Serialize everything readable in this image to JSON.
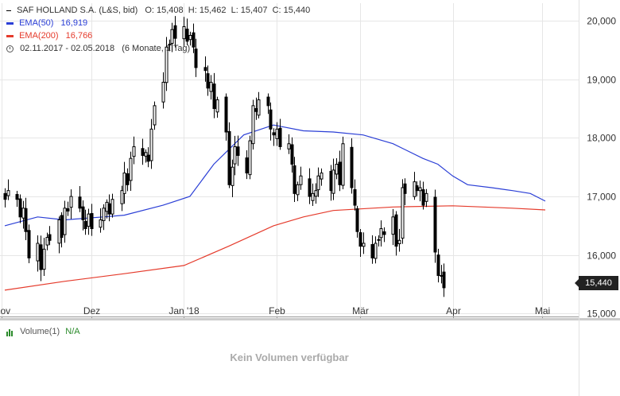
{
  "header": {
    "title": "SAF HOLLAND S.A. (L&S, bid)",
    "ohlc": "O: 15,408  H: 15,462  L: 15,407  C: 15,440",
    "ema50_label": "EMA(50)",
    "ema50_value": "16,919",
    "ema200_label": "EMA(200)",
    "ema200_value": "16,766",
    "period": "02.11.2017 - 02.05.2018",
    "period_detail": "(6 Monate, 1 Tag)"
  },
  "volume": {
    "label": "Volume(1)",
    "value": "N/A",
    "empty_text": "Kein Volumen verfügbar"
  },
  "last_price_label": "15,440",
  "colors": {
    "ema50": "#2b3fd6",
    "ema200": "#e53b2c",
    "candle": "#000000",
    "grid": "#e6e6e6"
  },
  "chart_data": {
    "type": "candlestick",
    "y_ticks": [
      "20,000",
      "19,000",
      "18,000",
      "17,000",
      "16,000",
      "15,000"
    ],
    "y_tick_values": [
      20,
      19,
      18,
      17,
      16,
      15
    ],
    "ylim": [
      14.95,
      20.3
    ],
    "x_ticks": [
      "Nov",
      "Dez",
      "Jan '18",
      "Feb",
      "Mär",
      "Apr",
      "Mai"
    ],
    "x_tick_dates": [
      "2017-11-01",
      "2017-12-01",
      "2018-01-01",
      "2018-02-01",
      "2018-03-01",
      "2018-04-01",
      "2018-05-01"
    ],
    "x_range": [
      "2017-11-02",
      "2018-05-02"
    ],
    "closes": [
      16.95,
      17.1,
      16.95,
      16.65,
      16.8,
      16.4,
      15.95,
      16.2,
      15.75,
      16.1,
      16.3,
      16.25,
      16.6,
      16.3,
      16.8,
      16.75,
      17.0,
      16.8,
      16.6,
      16.45,
      16.7,
      16.45,
      16.6,
      16.8,
      16.9,
      16.7,
      16.95,
      17.1,
      17.4,
      17.2,
      17.65,
      17.85,
      17.7,
      17.75,
      17.6,
      18.15,
      18.55,
      18.95,
      19.55,
      19.6,
      19.85,
      19.7,
      19.9,
      19.65,
      19.75,
      19.55,
      19.2,
      19.15,
      18.85,
      18.95,
      18.5,
      18.65,
      18.1,
      17.2,
      17.5,
      17.85,
      17.7,
      17.4,
      17.95,
      18.55,
      18.45,
      18.65,
      18.55,
      18.15,
      18.05,
      18.15,
      17.85,
      17.9,
      17.55,
      17.05,
      17.2,
      17.35,
      17.0,
      17.05,
      17.1,
      17.35,
      17.4,
      17.1,
      17.45,
      17.55,
      17.2,
      17.9,
      17.15,
      16.85,
      16.4,
      16.15,
      16.2,
      15.95,
      16.2,
      16.25,
      16.45,
      16.35,
      16.65,
      16.15,
      16.25,
      17.15,
      17.05,
      17.25,
      17.1,
      17.15,
      16.85,
      17.05,
      16.05,
      15.65,
      15.65,
      15.44
    ],
    "series": [
      {
        "name": "EMA(50)",
        "x_days": [
          0,
          11,
          20,
          33,
          40,
          53,
          62,
          70,
          80,
          90,
          100,
          110,
          120,
          130,
          140,
          145,
          150,
          155,
          163,
          170,
          176,
          181
        ],
        "values": [
          16.5,
          16.65,
          16.6,
          16.65,
          16.68,
          16.85,
          17.0,
          17.55,
          18.05,
          18.22,
          18.12,
          18.1,
          18.05,
          17.9,
          17.65,
          17.55,
          17.35,
          17.2,
          17.15,
          17.1,
          17.05,
          16.92
        ]
      },
      {
        "name": "EMA(200)",
        "x_days": [
          0,
          20,
          40,
          60,
          75,
          90,
          100,
          110,
          130,
          150,
          170,
          181
        ],
        "values": [
          15.4,
          15.55,
          15.68,
          15.82,
          16.15,
          16.5,
          16.65,
          16.76,
          16.82,
          16.84,
          16.8,
          16.77
        ]
      }
    ]
  }
}
